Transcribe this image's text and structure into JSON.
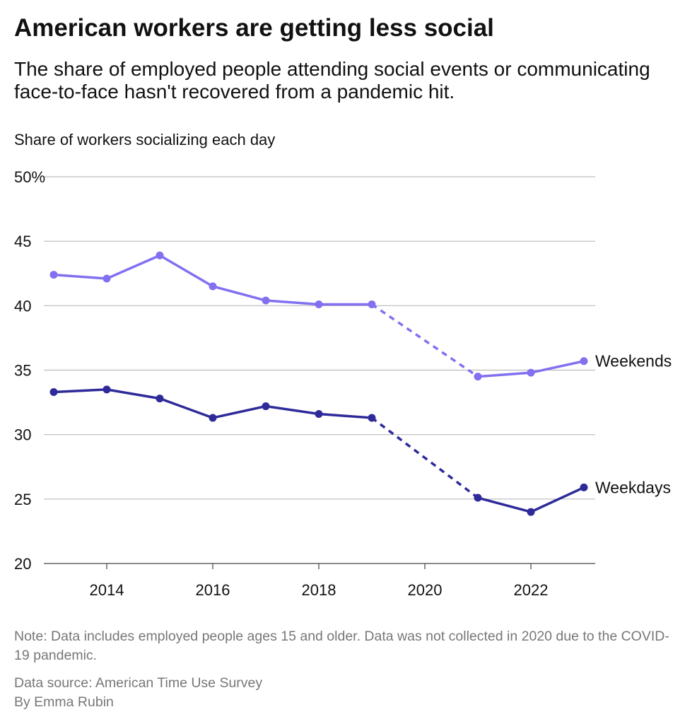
{
  "chart_data": {
    "type": "line",
    "title": "American workers are getting less social",
    "subtitle": "The share of employed people attending social events or communicating face-to-face hasn't recovered from a pandemic hit.",
    "ylabel": "Share of workers socializing each day",
    "xlabel": "",
    "ylim": [
      20,
      50
    ],
    "xlim": [
      2013,
      2023
    ],
    "yticks": [
      "20",
      "25",
      "30",
      "35",
      "40",
      "45",
      "50%"
    ],
    "ytick_values": [
      20,
      25,
      30,
      35,
      40,
      45,
      50
    ],
    "xticks": [
      "2014",
      "2016",
      "2018",
      "2020",
      "2022"
    ],
    "xtick_values": [
      2014,
      2016,
      2018,
      2020,
      2022
    ],
    "grid": true,
    "legend": "inline labels at line ends (right)",
    "gap_note": "Dashed segment bridges missing 2020",
    "series": [
      {
        "name": "Weekends",
        "color": "#8170F0",
        "x": [
          2013,
          2014,
          2015,
          2016,
          2017,
          2018,
          2019,
          2021,
          2022,
          2023
        ],
        "values": [
          42.4,
          42.1,
          43.9,
          41.5,
          40.4,
          40.1,
          40.1,
          34.5,
          34.8,
          35.7
        ]
      },
      {
        "name": "Weekdays",
        "color": "#2E2A9A",
        "x": [
          2013,
          2014,
          2015,
          2016,
          2017,
          2018,
          2019,
          2021,
          2022,
          2023
        ],
        "values": [
          33.3,
          33.5,
          32.8,
          31.3,
          32.2,
          31.6,
          31.3,
          25.1,
          24.0,
          25.9
        ]
      }
    ]
  },
  "footer": {
    "note": "Note: Data includes employed people ages 15 and older. Data was not collected in 2020 due to the COVID-19 pandemic.",
    "source": "Data source: American Time Use Survey",
    "byline": "By Emma Rubin"
  }
}
